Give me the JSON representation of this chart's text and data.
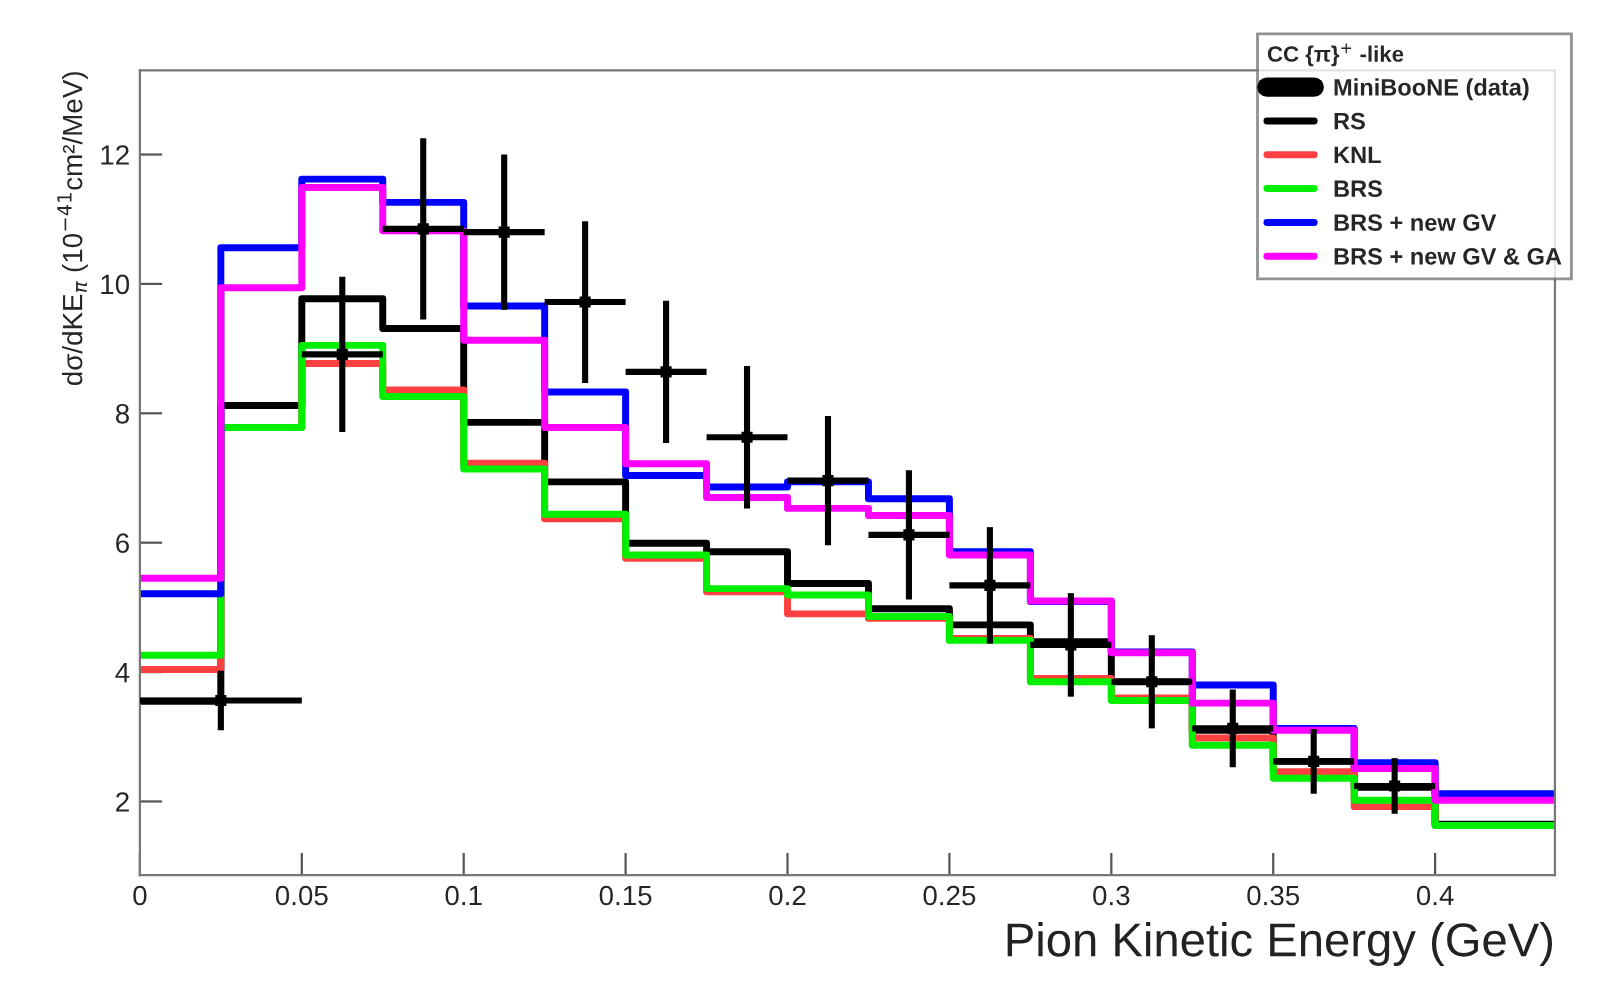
{
  "chart_data": {
    "type": "histogram",
    "xlabel": "Pion Kinetic Energy (GeV)",
    "ylabel": "dσ/dKE$_{π}$ (10$^{−41}$cm²/MeV)",
    "legend_title": "CC {π}$^{+}$ -like",
    "xlim": [
      0,
      0.437
    ],
    "ylim": [
      0.86,
      13.3
    ],
    "xticks": [
      0,
      0.05,
      0.1,
      0.15,
      0.2,
      0.25,
      0.3,
      0.35,
      0.4
    ],
    "yticks": [
      2,
      4,
      6,
      8,
      10,
      12
    ],
    "grid": false,
    "legend": "top right",
    "series": [
      {
        "name": "MiniBooNE (data)",
        "type": "scatter",
        "marker": "square",
        "color": "#000000",
        "x": [
          0.025,
          0.0625,
          0.0875,
          0.1125,
          0.1375,
          0.1625,
          0.1875,
          0.2125,
          0.2375,
          0.2625,
          0.2875,
          0.3125,
          0.3375,
          0.3625,
          0.3875
        ],
        "values": [
          3.56,
          8.91,
          10.85,
          10.8,
          9.72,
          8.64,
          7.63,
          6.96,
          6.12,
          5.34,
          4.42,
          3.85,
          3.13,
          2.62,
          2.24
        ],
        "errors": [
          0.46,
          1.2,
          1.4,
          1.2,
          1.25,
          1.1,
          1.1,
          1.0,
          1.0,
          0.9,
          0.8,
          0.72,
          0.6,
          0.5,
          0.43
        ],
        "xerrors": [
          0.025,
          0.0125,
          0.0125,
          0.0125,
          0.0125,
          0.0125,
          0.0125,
          0.0125,
          0.0125,
          0.0125,
          0.0125,
          0.0125,
          0.0125,
          0.0125,
          0.0125
        ]
      },
      {
        "name": "RS",
        "color": "#000000",
        "bins": [
          0,
          0.025,
          0.05,
          0.075,
          0.1,
          0.125,
          0.15,
          0.175,
          0.2,
          0.225,
          0.25,
          0.275,
          0.3,
          0.325,
          0.35,
          0.375,
          0.4,
          0.437
        ],
        "values": [
          3.55,
          8.12,
          9.77,
          9.31,
          7.86,
          6.94,
          5.99,
          5.86,
          5.37,
          4.98,
          4.73,
          4.47,
          3.85,
          3.1,
          2.62,
          2.22,
          1.65
        ]
      },
      {
        "name": "KNL",
        "color": "#ff4040",
        "bins": [
          0,
          0.025,
          0.05,
          0.075,
          0.1,
          0.125,
          0.15,
          0.175,
          0.2,
          0.225,
          0.25,
          0.275,
          0.3,
          0.325,
          0.35,
          0.375,
          0.4,
          0.437
        ],
        "values": [
          4.04,
          7.78,
          8.77,
          8.36,
          7.23,
          6.37,
          5.76,
          5.24,
          4.9,
          4.83,
          4.52,
          3.9,
          3.6,
          2.98,
          2.46,
          1.92,
          1.63
        ]
      },
      {
        "name": "BRS",
        "color": "#00ee00",
        "bins": [
          0,
          0.025,
          0.05,
          0.075,
          0.1,
          0.125,
          0.15,
          0.175,
          0.2,
          0.225,
          0.25,
          0.275,
          0.3,
          0.325,
          0.35,
          0.375,
          0.4,
          0.437
        ],
        "values": [
          4.26,
          7.78,
          9.05,
          8.26,
          7.14,
          6.44,
          5.81,
          5.29,
          5.19,
          4.86,
          4.49,
          3.85,
          3.56,
          2.87,
          2.36,
          2.02,
          1.63
        ]
      },
      {
        "name": "BRS + new GV",
        "color": "#0000ff",
        "bins": [
          0,
          0.025,
          0.05,
          0.075,
          0.1,
          0.125,
          0.15,
          0.175,
          0.2,
          0.225,
          0.25,
          0.275,
          0.3,
          0.325,
          0.35,
          0.375,
          0.4,
          0.437
        ],
        "values": [
          5.21,
          10.56,
          11.62,
          11.26,
          9.66,
          8.33,
          7.04,
          6.86,
          6.94,
          6.68,
          5.86,
          5.09,
          4.31,
          3.8,
          3.13,
          2.6,
          2.12
        ]
      },
      {
        "name": "BRS + new GV & GA",
        "color": "#ff00ff",
        "bins": [
          0,
          0.025,
          0.05,
          0.075,
          0.1,
          0.125,
          0.15,
          0.175,
          0.2,
          0.225,
          0.25,
          0.275,
          0.3,
          0.325,
          0.35,
          0.375,
          0.4,
          0.437
        ],
        "values": [
          5.45,
          9.94,
          11.49,
          10.82,
          9.13,
          7.78,
          7.22,
          6.7,
          6.53,
          6.42,
          5.81,
          5.1,
          4.3,
          3.52,
          3.1,
          2.51,
          2.02
        ]
      }
    ]
  }
}
